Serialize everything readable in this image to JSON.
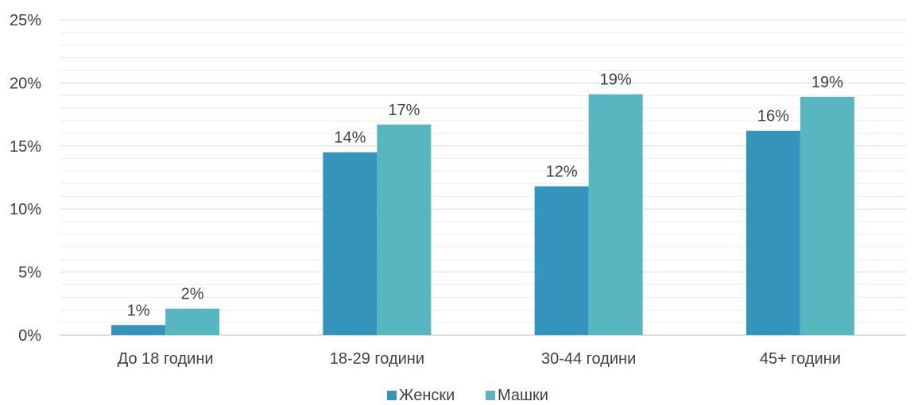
{
  "chart_data": {
    "type": "bar",
    "categories": [
      "До 18 години",
      "18-29 години",
      "30-44 години",
      "45+ години"
    ],
    "series": [
      {
        "name": "Женски",
        "values": [
          0.8,
          14.5,
          11.8,
          16.2
        ],
        "labels": [
          "1%",
          "14%",
          "12%",
          "16%"
        ],
        "color": "#3594bc"
      },
      {
        "name": "Машки",
        "values": [
          2.1,
          16.7,
          19.1,
          18.9
        ],
        "labels": [
          "2%",
          "17%",
          "19%",
          "19%"
        ],
        "color": "#58b6c0"
      }
    ],
    "ylim": [
      0,
      25
    ],
    "yticks": [
      0,
      5,
      10,
      15,
      20,
      25
    ],
    "ytick_labels": [
      "0%",
      "5%",
      "10%",
      "15%",
      "20%",
      "25%"
    ],
    "minor_step": 1,
    "grid": true,
    "legend": "bottom-center",
    "xlabel": "",
    "ylabel": "",
    "title": ""
  }
}
